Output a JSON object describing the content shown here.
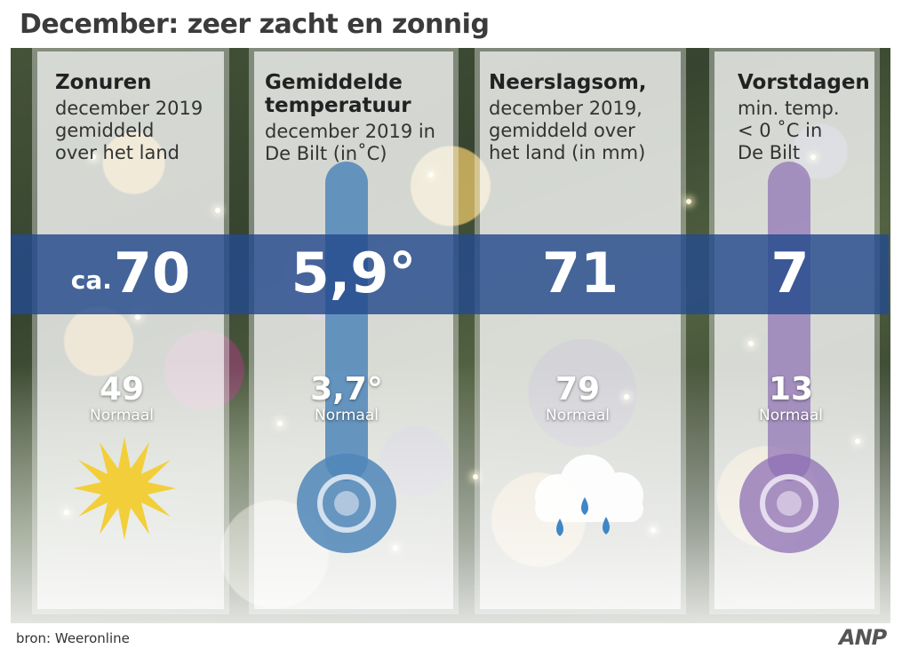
{
  "title": "December: zeer zacht en zonnig",
  "columns": [
    {
      "title_lines": [
        "Zonuren"
      ],
      "subtitle_lines": [
        "december 2019",
        "gemiddeld",
        "over het land"
      ],
      "value_prefix": "ca.",
      "value": "70",
      "normal_value": "49",
      "normal_label": "Normaal",
      "icon": "sun-icon"
    },
    {
      "title_lines": [
        "Gemiddelde",
        "temperatuur"
      ],
      "subtitle_lines": [
        "december 2019 in",
        "De Bilt (in˚C)"
      ],
      "value": "5,9°",
      "normal_value": "3,7°",
      "normal_label": "Normaal",
      "icon": "thermometer-icon"
    },
    {
      "title_lines": [
        "Neerslagsom,"
      ],
      "subtitle_lines": [
        "december 2019,",
        "gemiddeld over",
        "het land (in mm)"
      ],
      "value": "71",
      "normal_value": "79",
      "normal_label": "Normaal",
      "icon": "rain-cloud-icon"
    },
    {
      "title_lines": [
        "Vorstdagen"
      ],
      "subtitle_lines": [
        "min. temp.",
        "< 0 ˚C in",
        "De Bilt"
      ],
      "value": "7",
      "normal_value": "13",
      "normal_label": "Normaal",
      "icon": "thermometer-cold-icon"
    }
  ],
  "source": "bron: Weeronline",
  "logo": "ANP",
  "colors": {
    "band": "#244a8c",
    "sun": "#f2cf3a",
    "thermometer_warm": "#4f86b8",
    "thermometer_cold": "#8d6fb3",
    "raindrop": "#3f86c7",
    "cloud": "#ffffff"
  }
}
